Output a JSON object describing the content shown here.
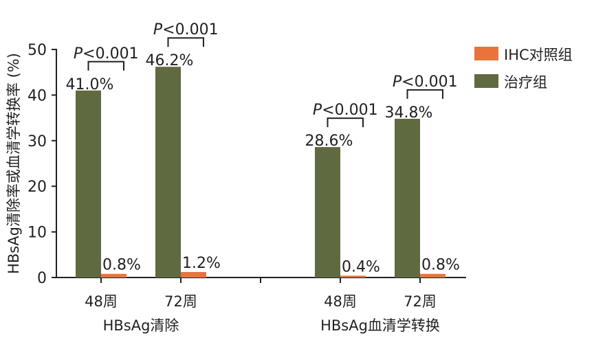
{
  "chart_data": {
    "type": "bar",
    "ylabel": "HBsAg清除率或血清学转换率 (%)",
    "ylim": [
      0,
      50
    ],
    "yticks": [
      0,
      10,
      20,
      30,
      40,
      50
    ],
    "groups": [
      {
        "label": "HBsAg清除",
        "categories": [
          "48周",
          "72周"
        ]
      },
      {
        "label": "HBsAg血清学转换",
        "categories": [
          "48周",
          "72周"
        ]
      }
    ],
    "series": [
      {
        "name": "IHC对照组",
        "color": "#e8743b",
        "values": [
          0.8,
          1.2,
          0.4,
          0.8
        ],
        "labels": [
          "0.8%",
          "1.2%",
          "0.4%",
          "0.8%"
        ]
      },
      {
        "name": "治疗组",
        "color": "#5f6a40",
        "values": [
          41.0,
          46.2,
          28.6,
          34.8
        ],
        "labels": [
          "41.0%",
          "46.2%",
          "28.6%",
          "34.8%"
        ]
      }
    ],
    "annotations": [
      {
        "p_symbol": "P",
        "text": "<0.001"
      },
      {
        "p_symbol": "P",
        "text": "<0.001"
      },
      {
        "p_symbol": "P",
        "text": "<0.001"
      },
      {
        "p_symbol": "P",
        "text": "<0.001"
      }
    ],
    "legend_position": "top-right",
    "grid": false
  }
}
